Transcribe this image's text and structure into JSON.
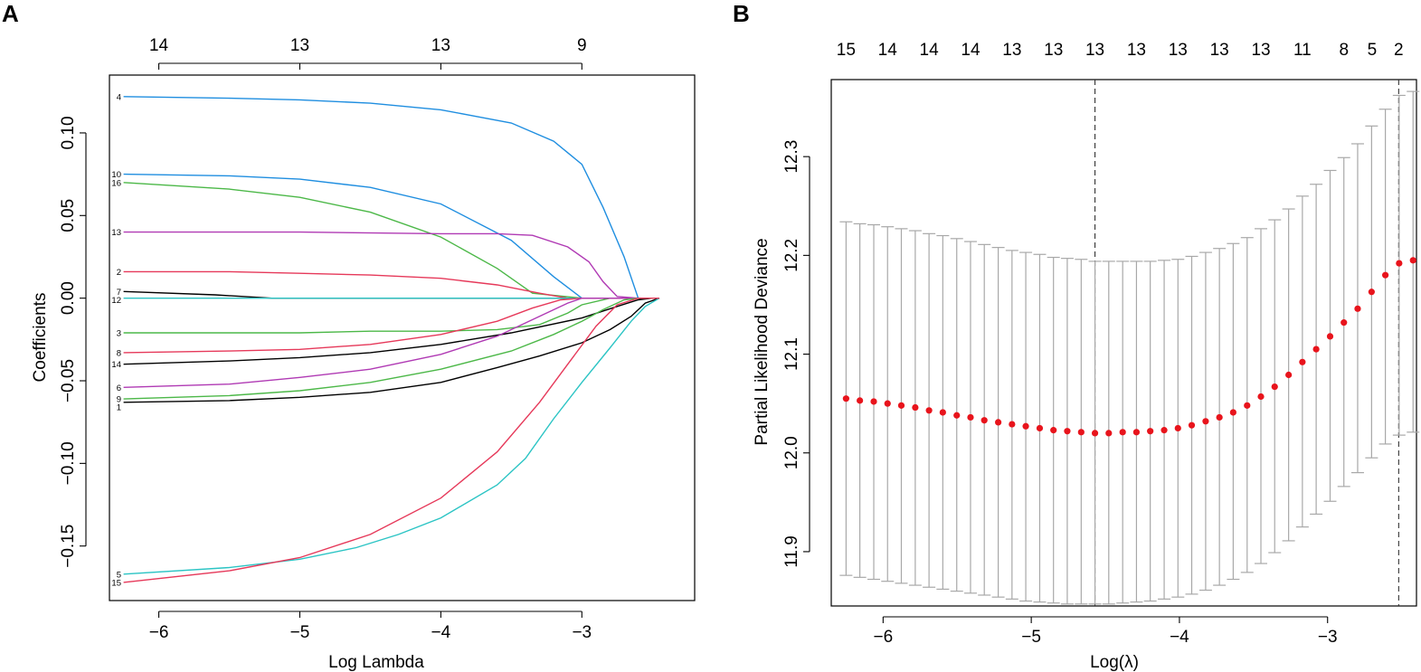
{
  "figure": {
    "panel_a_letter": "A",
    "panel_b_letter": "B"
  },
  "chart_data": [
    {
      "type": "line",
      "panel": "A",
      "title": "",
      "xlabel": "Log Lambda",
      "ylabel": "Coefficients",
      "xlim": [
        -6.35,
        -2.2
      ],
      "ylim": [
        -0.183,
        0.135
      ],
      "x_ticks": [
        -6,
        -5,
        -4,
        -3
      ],
      "x_tick_labels": [
        "−6",
        "−5",
        "−4",
        "−3"
      ],
      "y_ticks": [
        -0.15,
        -0.1,
        -0.05,
        0.0,
        0.05,
        0.1
      ],
      "y_tick_labels": [
        "−0.15",
        "−0.10",
        "−0.05",
        "0.00",
        "0.05",
        "0.10"
      ],
      "top_axis": {
        "positions": [
          -6,
          -5,
          -4,
          -3
        ],
        "labels": [
          "14",
          "13",
          "13",
          "9"
        ]
      },
      "series": [
        {
          "name": "4",
          "color": "#1f8ee0",
          "x": [
            -6.25,
            -5.5,
            -5,
            -4.5,
            -4,
            -3.5,
            -3.2,
            -3,
            -2.85,
            -2.7,
            -2.6,
            -2.45
          ],
          "y": [
            0.122,
            0.121,
            0.12,
            0.118,
            0.114,
            0.106,
            0.095,
            0.081,
            0.055,
            0.025,
            0.0,
            0.0
          ]
        },
        {
          "name": "10",
          "color": "#1f8ee0",
          "x": [
            -6.25,
            -5.5,
            -5,
            -4.5,
            -4,
            -3.5,
            -3.2,
            -3,
            -2.6,
            -2.45
          ],
          "y": [
            0.075,
            0.074,
            0.072,
            0.067,
            0.057,
            0.035,
            0.013,
            0.0,
            0.0,
            0.0
          ]
        },
        {
          "name": "16",
          "color": "#4cb848",
          "x": [
            -6.25,
            -5.5,
            -5,
            -4.5,
            -4,
            -3.6,
            -3.35,
            -3,
            -2.6,
            -2.45
          ],
          "y": [
            0.07,
            0.066,
            0.061,
            0.052,
            0.037,
            0.018,
            0.003,
            0.0,
            0.0,
            0.0
          ]
        },
        {
          "name": "13",
          "color": "#b03ab4",
          "x": [
            -6.25,
            -5,
            -4,
            -3.6,
            -3.35,
            -3.1,
            -2.95,
            -2.85,
            -2.75,
            -2.6,
            -2.45
          ],
          "y": [
            0.04,
            0.04,
            0.039,
            0.039,
            0.038,
            0.031,
            0.022,
            0.01,
            0.001,
            0.0,
            0.0
          ]
        },
        {
          "name": "2",
          "color": "#e6395a",
          "x": [
            -6.25,
            -5.5,
            -5,
            -4.5,
            -4,
            -3.6,
            -3.3,
            -3.1,
            -3,
            -2.6,
            -2.45
          ],
          "y": [
            0.016,
            0.016,
            0.015,
            0.014,
            0.012,
            0.008,
            0.003,
            0.0,
            0.0,
            0.0,
            0.0
          ]
        },
        {
          "name": "7",
          "color": "#000000",
          "x": [
            -6.25,
            -5.6,
            -5.2,
            -4,
            -3,
            -2.45
          ],
          "y": [
            0.004,
            0.002,
            0.0,
            0.0,
            0.0,
            0.0
          ]
        },
        {
          "name": "12",
          "color": "#2bc4c4",
          "x": [
            -6.25,
            -5,
            -4,
            -3,
            -2.45
          ],
          "y": [
            0.0,
            0.0,
            0.0,
            0.0,
            0.0
          ]
        },
        {
          "name": "3",
          "color": "#4cb848",
          "x": [
            -6.25,
            -5.5,
            -5,
            -4.5,
            -4,
            -3.6,
            -3.3,
            -3.1,
            -3,
            -2.8,
            -2.6,
            -2.45
          ],
          "y": [
            -0.021,
            -0.021,
            -0.021,
            -0.02,
            -0.02,
            -0.019,
            -0.016,
            -0.009,
            -0.004,
            0.0,
            0.0,
            0.0
          ]
        },
        {
          "name": "8",
          "color": "#e6395a",
          "x": [
            -6.25,
            -5.5,
            -5,
            -4.5,
            -4,
            -3.6,
            -3.35,
            -3.15,
            -3,
            -2.6,
            -2.45
          ],
          "y": [
            -0.033,
            -0.032,
            -0.031,
            -0.028,
            -0.022,
            -0.014,
            -0.006,
            -0.001,
            0.0,
            0.0,
            0.0
          ]
        },
        {
          "name": "14",
          "color": "#000000",
          "x": [
            -6.25,
            -5.5,
            -5,
            -4.5,
            -4,
            -3.5,
            -3,
            -2.75,
            -2.6,
            -2.5,
            -2.45
          ],
          "y": [
            -0.04,
            -0.038,
            -0.036,
            -0.033,
            -0.028,
            -0.021,
            -0.012,
            -0.005,
            -0.001,
            0.0,
            0.0
          ]
        },
        {
          "name": "6",
          "color": "#b03ab4",
          "x": [
            -6.25,
            -5.5,
            -5,
            -4.5,
            -4,
            -3.6,
            -3.3,
            -3.1,
            -3,
            -2.6,
            -2.45
          ],
          "y": [
            -0.054,
            -0.052,
            -0.048,
            -0.043,
            -0.034,
            -0.023,
            -0.011,
            -0.003,
            0.0,
            0.0,
            0.0
          ]
        },
        {
          "name": "9",
          "color": "#4cb848",
          "x": [
            -6.25,
            -5.5,
            -5,
            -4.5,
            -4,
            -3.5,
            -3.2,
            -3,
            -2.85,
            -2.7,
            -2.6,
            -2.45
          ],
          "y": [
            -0.061,
            -0.059,
            -0.056,
            -0.051,
            -0.043,
            -0.032,
            -0.022,
            -0.014,
            -0.007,
            -0.001,
            0.0,
            0.0
          ]
        },
        {
          "name": "1",
          "color": "#000000",
          "x": [
            -6.25,
            -5.5,
            -5,
            -4.5,
            -4,
            -3.6,
            -3.3,
            -3,
            -2.8,
            -2.65,
            -2.55,
            -2.45
          ],
          "y": [
            -0.063,
            -0.062,
            -0.06,
            -0.057,
            -0.051,
            -0.042,
            -0.035,
            -0.027,
            -0.019,
            -0.011,
            -0.003,
            0.0
          ]
        },
        {
          "name": "5",
          "color": "#2bc4c4",
          "x": [
            -6.25,
            -5.5,
            -5,
            -4.6,
            -4.3,
            -4,
            -3.6,
            -3.4,
            -3.2,
            -3,
            -2.8,
            -2.65,
            -2.55,
            -2.45
          ],
          "y": [
            -0.167,
            -0.163,
            -0.158,
            -0.151,
            -0.143,
            -0.133,
            -0.113,
            -0.097,
            -0.073,
            -0.051,
            -0.03,
            -0.014,
            -0.005,
            0.0
          ]
        },
        {
          "name": "15",
          "color": "#e6395a",
          "x": [
            -6.25,
            -5.5,
            -5,
            -4.5,
            -4,
            -3.6,
            -3.3,
            -3.1,
            -2.9,
            -2.75,
            -2.6,
            -2.45
          ],
          "y": [
            -0.172,
            -0.165,
            -0.157,
            -0.143,
            -0.121,
            -0.093,
            -0.063,
            -0.04,
            -0.017,
            -0.004,
            0.0,
            0.0
          ]
        }
      ]
    },
    {
      "type": "scatter",
      "panel": "B",
      "title": "",
      "xlabel": "Log(λ)",
      "ylabel": "Partial Likelihood Deviance",
      "xlim": [
        -6.35,
        -2.4
      ],
      "ylim": [
        11.845,
        12.378
      ],
      "x_ticks": [
        -6,
        -5,
        -4,
        -3
      ],
      "x_tick_labels": [
        "−6",
        "−5",
        "−4",
        "−3"
      ],
      "y_ticks": [
        11.9,
        12.0,
        12.1,
        12.2,
        12.3
      ],
      "y_tick_labels": [
        "11.9",
        "12.0",
        "12.1",
        "12.2",
        "12.3"
      ],
      "top_axis": {
        "positions": [
          -6.25,
          -5.97,
          -5.69,
          -5.41,
          -5.13,
          -4.85,
          -4.57,
          -4.29,
          -4.01,
          -3.73,
          -3.45,
          -3.17,
          -2.89,
          -2.7,
          -2.52
        ],
        "labels": [
          "15",
          "14",
          "14",
          "14",
          "13",
          "13",
          "13",
          "13",
          "13",
          "13",
          "13",
          "11",
          "8",
          "5",
          "2"
        ]
      },
      "vlines": [
        -4.57,
        -2.52
      ],
      "point_color": "#e8141c",
      "errorbar_color": "#a8a8a8",
      "x": [
        -6.25,
        -6.157,
        -6.063,
        -5.97,
        -5.877,
        -5.783,
        -5.69,
        -5.597,
        -5.503,
        -5.41,
        -5.317,
        -5.223,
        -5.13,
        -5.037,
        -4.943,
        -4.85,
        -4.757,
        -4.663,
        -4.57,
        -4.477,
        -4.383,
        -4.29,
        -4.197,
        -4.103,
        -4.01,
        -3.917,
        -3.823,
        -3.73,
        -3.637,
        -3.543,
        -3.45,
        -3.357,
        -3.263,
        -3.17,
        -3.077,
        -2.983,
        -2.89,
        -2.797,
        -2.703,
        -2.61,
        -2.517,
        -2.423
      ],
      "y": [
        12.055,
        12.053,
        12.052,
        12.05,
        12.048,
        12.046,
        12.043,
        12.041,
        12.038,
        12.036,
        12.033,
        12.031,
        12.029,
        12.027,
        12.025,
        12.023,
        12.022,
        12.021,
        12.02,
        12.02,
        12.021,
        12.021,
        12.022,
        12.023,
        12.025,
        12.028,
        12.032,
        12.036,
        12.041,
        12.048,
        12.057,
        12.067,
        12.079,
        12.092,
        12.105,
        12.118,
        12.132,
        12.146,
        12.163,
        12.18,
        12.192,
        12.195
      ],
      "lower": [
        11.876,
        11.874,
        11.872,
        11.87,
        11.868,
        11.866,
        11.864,
        11.862,
        11.86,
        11.858,
        11.856,
        11.854,
        11.852,
        11.85,
        11.849,
        11.848,
        11.847,
        11.847,
        11.847,
        11.847,
        11.848,
        11.849,
        11.85,
        11.852,
        11.854,
        11.857,
        11.861,
        11.866,
        11.872,
        11.879,
        11.888,
        11.899,
        11.911,
        11.925,
        11.938,
        11.951,
        11.966,
        11.98,
        11.995,
        12.009,
        12.018,
        12.021
      ],
      "upper": [
        12.234,
        12.232,
        12.231,
        12.229,
        12.227,
        12.225,
        12.222,
        12.22,
        12.217,
        12.214,
        12.211,
        12.208,
        12.205,
        12.203,
        12.201,
        12.198,
        12.197,
        12.196,
        12.194,
        12.194,
        12.194,
        12.194,
        12.194,
        12.195,
        12.196,
        12.199,
        12.203,
        12.207,
        12.212,
        12.218,
        12.227,
        12.236,
        12.247,
        12.26,
        12.272,
        12.286,
        12.299,
        12.313,
        12.331,
        12.348,
        12.362,
        12.366
      ]
    }
  ]
}
